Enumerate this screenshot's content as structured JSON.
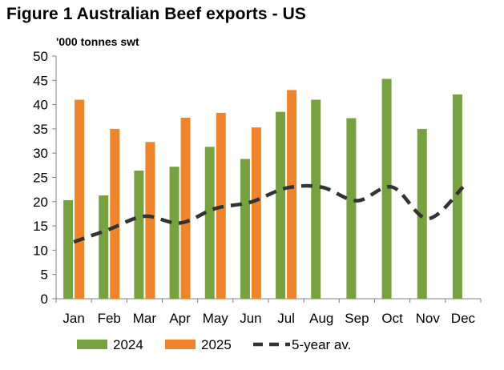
{
  "chart_data": {
    "type": "bar",
    "title": "Figure 1 Australian Beef exports - US",
    "unit_label": "'000 tonnes swt",
    "xlabel": "",
    "ylabel": "",
    "ylim": [
      0,
      50
    ],
    "yticks": [
      0,
      5,
      10,
      15,
      20,
      25,
      30,
      35,
      40,
      45,
      50
    ],
    "grid": false,
    "legend_position": "bottom",
    "categories": [
      "Jan",
      "Feb",
      "Mar",
      "Apr",
      "May",
      "Jun",
      "Jul",
      "Aug",
      "Sep",
      "Oct",
      "Nov",
      "Dec"
    ],
    "series": [
      {
        "name": "2024",
        "type": "bar",
        "color": "#76a23f",
        "values": [
          20.3,
          21.3,
          26.4,
          27.2,
          31.3,
          28.8,
          38.5,
          41.0,
          37.2,
          45.3,
          35.0,
          42.1
        ]
      },
      {
        "name": "2025",
        "type": "bar",
        "color": "#f0842a",
        "values": [
          41.0,
          35.0,
          32.3,
          37.3,
          38.3,
          35.3,
          43.0,
          null,
          null,
          null,
          null,
          null
        ]
      },
      {
        "name": "5-year av.",
        "type": "line",
        "style": "dashed",
        "color": "#333333",
        "values": [
          11.7,
          14.3,
          17.0,
          15.6,
          18.6,
          19.9,
          22.8,
          23.0,
          20.2,
          23.0,
          16.5,
          23.0
        ]
      }
    ]
  }
}
